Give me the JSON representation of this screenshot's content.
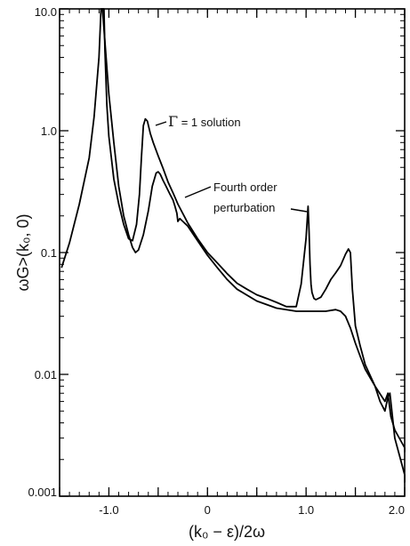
{
  "chart_data": {
    "type": "line",
    "xlabel": "(k₀ − ε)/2ω",
    "ylabel": "ωG>(k₀, 0)",
    "xlim": [
      -1.5,
      2.0
    ],
    "ylim": [
      0.001,
      10.0
    ],
    "yscale": "log",
    "grid": false,
    "x_ticks": [
      -1.0,
      0,
      1.0,
      2.0
    ],
    "x_tick_labels": [
      "-1.0",
      "0",
      "1.0",
      "2.0"
    ],
    "y_ticks": [
      0.001,
      0.01,
      0.1,
      1.0,
      10.0
    ],
    "y_tick_labels": [
      "0.001",
      "0.01",
      "0.1",
      "1.0",
      "10.0"
    ],
    "annotations": [
      {
        "gamma": "Γ",
        "text": " = 1 solution"
      },
      {
        "line1": "Fourth order",
        "line2": "perturbation"
      }
    ],
    "series": [
      {
        "id": "gamma1",
        "x": [
          -1.48,
          -1.4,
          -1.3,
          -1.2,
          -1.15,
          -1.1,
          -1.08,
          -1.065,
          -1.05,
          -1.04,
          -1.02,
          -1.0,
          -0.95,
          -0.9,
          -0.85,
          -0.8,
          -0.76,
          -0.72,
          -0.69,
          -0.67,
          -0.65,
          -0.63,
          -0.61,
          -0.58,
          -0.55,
          -0.5,
          -0.45,
          -0.4,
          -0.35,
          -0.3,
          -0.2,
          -0.1,
          0.0,
          0.1,
          0.2,
          0.3,
          0.4,
          0.5,
          0.6,
          0.7,
          0.8,
          0.9,
          0.95,
          1.0,
          1.02,
          1.03,
          1.04,
          1.05,
          1.06,
          1.08,
          1.1,
          1.15,
          1.2,
          1.25,
          1.3,
          1.35,
          1.4,
          1.43,
          1.45,
          1.47,
          1.5,
          1.55,
          1.6,
          1.7,
          1.8,
          1.83,
          1.84,
          1.86,
          1.9,
          2.0,
          2.03
        ],
        "y": [
          0.075,
          0.12,
          0.25,
          0.6,
          1.3,
          4.0,
          10.0,
          10.0,
          10.0,
          4.5,
          1.6,
          0.9,
          0.4,
          0.25,
          0.17,
          0.13,
          0.125,
          0.17,
          0.3,
          0.6,
          1.1,
          1.25,
          1.2,
          0.95,
          0.8,
          0.62,
          0.49,
          0.38,
          0.31,
          0.25,
          0.175,
          0.13,
          0.1,
          0.082,
          0.067,
          0.056,
          0.05,
          0.045,
          0.042,
          0.039,
          0.036,
          0.036,
          0.055,
          0.13,
          0.24,
          0.15,
          0.08,
          0.055,
          0.047,
          0.042,
          0.041,
          0.043,
          0.05,
          0.06,
          0.068,
          0.078,
          0.097,
          0.107,
          0.1,
          0.05,
          0.025,
          0.017,
          0.012,
          0.008,
          0.006,
          0.007,
          0.006,
          0.0045,
          0.0035,
          0.0025,
          0.0023
        ]
      },
      {
        "id": "fourth",
        "x": [
          -1.065,
          -1.0,
          -0.95,
          -0.9,
          -0.85,
          -0.8,
          -0.76,
          -0.73,
          -0.7,
          -0.65,
          -0.6,
          -0.56,
          -0.52,
          -0.5,
          -0.48,
          -0.45,
          -0.42,
          -0.38,
          -0.35,
          -0.33,
          -0.31,
          -0.3,
          -0.28,
          -0.25,
          -0.2,
          -0.1,
          0.0,
          0.1,
          0.2,
          0.3,
          0.5,
          0.7,
          0.9,
          1.1,
          1.2,
          1.3,
          1.35,
          1.4,
          1.45,
          1.5,
          1.55,
          1.6,
          1.7,
          1.75,
          1.8,
          1.83,
          1.85,
          1.87,
          1.9,
          2.0,
          2.03
        ],
        "y": [
          10.0,
          2.0,
          0.8,
          0.35,
          0.2,
          0.14,
          0.11,
          0.1,
          0.105,
          0.14,
          0.22,
          0.35,
          0.45,
          0.46,
          0.44,
          0.39,
          0.35,
          0.3,
          0.27,
          0.24,
          0.21,
          0.18,
          0.19,
          0.18,
          0.165,
          0.125,
          0.095,
          0.075,
          0.06,
          0.05,
          0.04,
          0.035,
          0.033,
          0.033,
          0.033,
          0.034,
          0.033,
          0.03,
          0.024,
          0.018,
          0.014,
          0.011,
          0.008,
          0.006,
          0.005,
          0.0065,
          0.007,
          0.005,
          0.003,
          0.0015,
          0.0013
        ]
      }
    ]
  }
}
